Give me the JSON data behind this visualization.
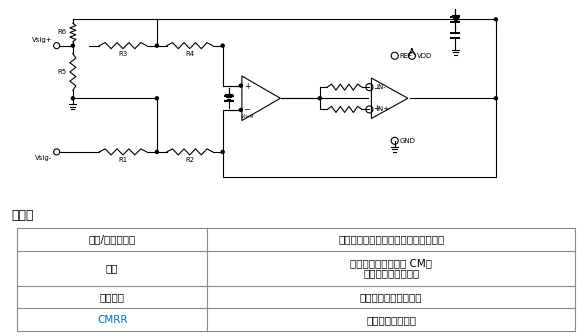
{
  "table_title": "利与弊",
  "table_rows": [
    [
      "裕量/单电源供电",
      "适合单电源供电，因为采用反相配置。"
    ],
    [
      "增益",
      "允许衰减增益和可变 CM。\n轻松设置输出共模。"
    ],
    [
      "输入阻抗",
      "取决于所选择的电阻。"
    ],
    [
      "CMRR",
      "良好的共模抑制。"
    ]
  ],
  "cmrr_color": "#0070C0",
  "bg_color": "#ffffff",
  "black": "#000000",
  "gray": "#888888"
}
